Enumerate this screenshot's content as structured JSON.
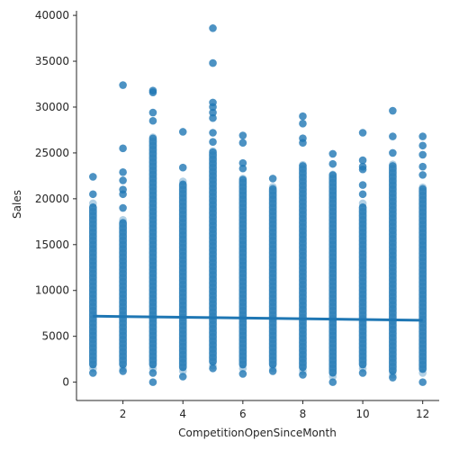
{
  "chart_data": {
    "type": "scatter",
    "xlabel": "CompetitionOpenSinceMonth",
    "ylabel": "Sales",
    "xlim": [
      0.45,
      12.55
    ],
    "ylim": [
      -2000,
      40500
    ],
    "xticks": [
      2,
      4,
      6,
      8,
      10,
      12
    ],
    "xtick_labels": [
      "2",
      "4",
      "6",
      "8",
      "10",
      "12"
    ],
    "yticks": [
      0,
      5000,
      10000,
      15000,
      20000,
      25000,
      30000,
      35000,
      40000
    ],
    "ytick_labels": [
      "0",
      "5000",
      "10000",
      "15000",
      "20000",
      "25000",
      "30000",
      "35000",
      "40000"
    ],
    "grid": false,
    "spines": "left-bottom",
    "colors": {
      "points": "#1f77b4",
      "regression_line": "#1f77b4"
    },
    "point_alpha": 0.8,
    "columns": [
      {
        "x": 1,
        "dense_min": 1500,
        "dense_max": 19500,
        "outliers": [
          1000,
          20500,
          22400
        ]
      },
      {
        "x": 2,
        "dense_min": 1500,
        "dense_max": 17800,
        "outliers": [
          1200,
          19000,
          20500,
          21000,
          22000,
          22900,
          25500,
          32400
        ]
      },
      {
        "x": 3,
        "dense_min": 1500,
        "dense_max": 27000,
        "outliers": [
          0,
          1000,
          28500,
          29400,
          31600,
          31800
        ]
      },
      {
        "x": 4,
        "dense_min": 1200,
        "dense_max": 22000,
        "outliers": [
          600,
          23400,
          27300
        ]
      },
      {
        "x": 5,
        "dense_min": 1800,
        "dense_max": 25500,
        "outliers": [
          1500,
          26200,
          27200,
          28800,
          29400,
          30000,
          30500,
          34800,
          38600
        ]
      },
      {
        "x": 6,
        "dense_min": 1500,
        "dense_max": 22500,
        "outliers": [
          900,
          23300,
          23900,
          26100,
          26900
        ]
      },
      {
        "x": 7,
        "dense_min": 1500,
        "dense_max": 21500,
        "outliers": [
          1200,
          22200
        ]
      },
      {
        "x": 8,
        "dense_min": 1200,
        "dense_max": 24000,
        "outliers": [
          800,
          26100,
          26600,
          28200,
          29000
        ]
      },
      {
        "x": 9,
        "dense_min": 600,
        "dense_max": 23000,
        "outliers": [
          0,
          23800,
          24900
        ]
      },
      {
        "x": 10,
        "dense_min": 1500,
        "dense_max": 19500,
        "outliers": [
          1000,
          20500,
          21500,
          23200,
          23500,
          24200,
          27200
        ]
      },
      {
        "x": 11,
        "dense_min": 800,
        "dense_max": 24000,
        "outliers": [
          500,
          25000,
          26800,
          29600
        ]
      },
      {
        "x": 12,
        "dense_min": 1000,
        "dense_max": 21500,
        "outliers": [
          0,
          22600,
          23500,
          24800,
          25800,
          26800
        ]
      }
    ],
    "regression": {
      "x": [
        1,
        12
      ],
      "y": [
        7200,
        6750
      ]
    }
  }
}
